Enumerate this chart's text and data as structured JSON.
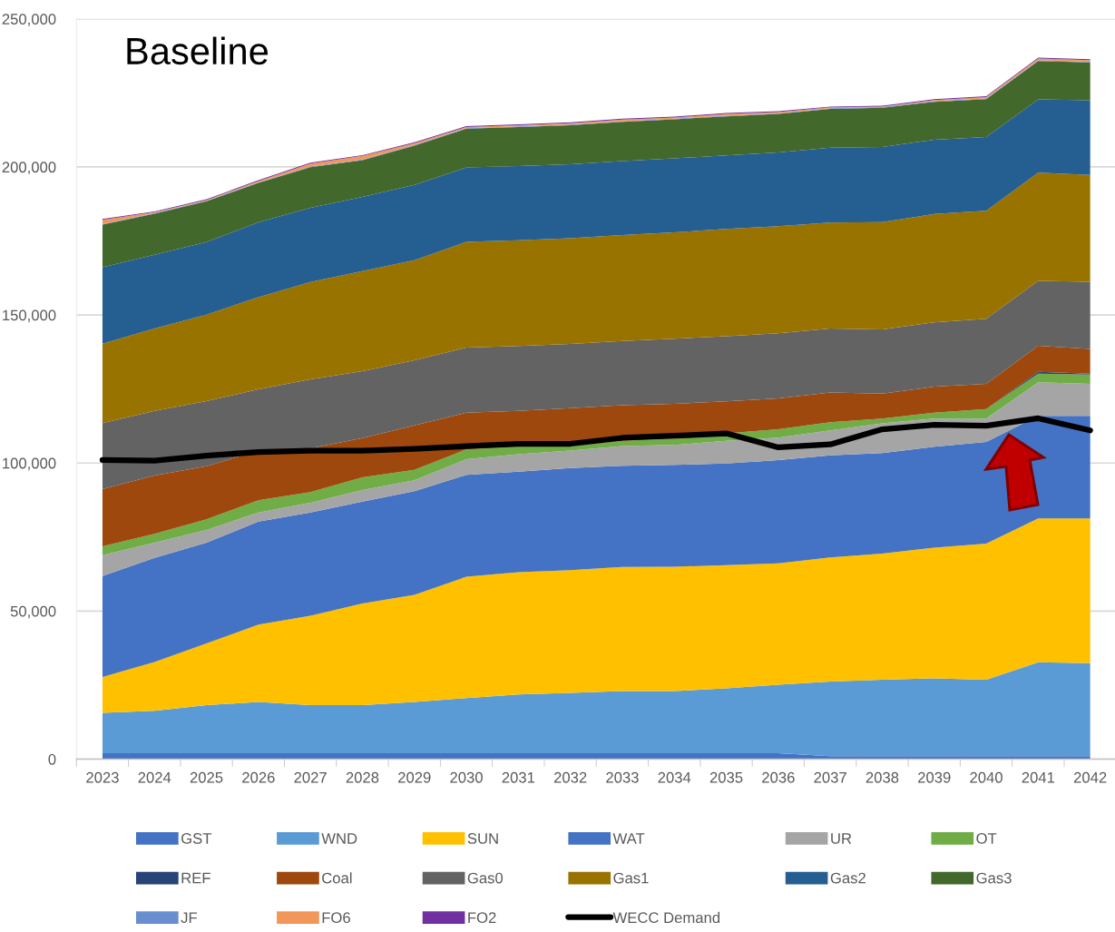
{
  "chart_data": {
    "type": "area",
    "title": "Baseline",
    "stacked": true,
    "categories": [
      "2023",
      "2024",
      "2025",
      "2026",
      "2027",
      "2028",
      "2029",
      "2030",
      "2031",
      "2032",
      "2033",
      "2034",
      "2035",
      "2036",
      "2037",
      "2038",
      "2039",
      "2040",
      "2041",
      "2042"
    ],
    "series": [
      {
        "name": "GST",
        "color": "#4472c4",
        "values": [
          2000,
          2000,
          2000,
          2000,
          2000,
          2000,
          2000,
          2000,
          2000,
          2000,
          2000,
          2000,
          2000,
          2000,
          1000,
          1000,
          1000,
          1000,
          1000,
          1000
        ]
      },
      {
        "name": "WND",
        "color": "#5b9bd5",
        "values": [
          13600,
          14300,
          16200,
          17300,
          16200,
          16200,
          17300,
          18600,
          19800,
          20400,
          21000,
          21000,
          21900,
          23100,
          25200,
          25800,
          26300,
          25800,
          31700,
          31400
        ]
      },
      {
        "name": "SUN",
        "color": "#ffc000",
        "values": [
          12100,
          16500,
          20900,
          26100,
          30200,
          34400,
          36200,
          41000,
          41300,
          41400,
          41900,
          42000,
          41600,
          41000,
          41900,
          42600,
          44100,
          46000,
          48600,
          48900
        ]
      },
      {
        "name": "WAT",
        "color": "#4472c4",
        "values": [
          34100,
          35200,
          34000,
          34800,
          34900,
          34400,
          35000,
          34400,
          34000,
          34500,
          34200,
          34400,
          34300,
          34900,
          34500,
          34000,
          34100,
          34300,
          34600,
          34600
        ]
      },
      {
        "name": "UR",
        "color": "#a5a5a5",
        "values": [
          7100,
          5100,
          4300,
          3100,
          3300,
          3900,
          3700,
          5300,
          5900,
          5900,
          6600,
          6700,
          7700,
          7600,
          8400,
          10000,
          9500,
          7900,
          11400,
          10800
        ]
      },
      {
        "name": "OT",
        "color": "#70ad47",
        "values": [
          3000,
          3000,
          3600,
          4100,
          3600,
          4300,
          3500,
          3300,
          2600,
          1800,
          1800,
          2200,
          2500,
          2800,
          2800,
          1600,
          2000,
          3200,
          2900,
          3200
        ]
      },
      {
        "name": "REF",
        "color": "#264478",
        "values": [
          0,
          0,
          0,
          0,
          0,
          0,
          0,
          0,
          0,
          0,
          0,
          0,
          0,
          0,
          0,
          0,
          0,
          0,
          600,
          300
        ]
      },
      {
        "name": "Coal",
        "color": "#9e480e",
        "values": [
          19300,
          19700,
          17900,
          16800,
          14800,
          13200,
          15000,
          12400,
          12000,
          12500,
          12000,
          11700,
          10800,
          10400,
          10000,
          8400,
          8800,
          8500,
          8800,
          8300
        ]
      },
      {
        "name": "Gas0",
        "color": "#636363",
        "values": [
          22300,
          21800,
          22000,
          20700,
          23300,
          22600,
          22000,
          22000,
          21900,
          21700,
          21700,
          22000,
          22000,
          22000,
          21600,
          21700,
          21700,
          22000,
          21900,
          22700
        ]
      },
      {
        "name": "Gas1",
        "color": "#997300",
        "values": [
          26800,
          27800,
          29200,
          31100,
          32800,
          33800,
          33800,
          35700,
          35700,
          35700,
          35800,
          35900,
          36300,
          36200,
          35800,
          36300,
          36600,
          36500,
          36600,
          36100
        ]
      },
      {
        "name": "Gas2",
        "color": "#255e91",
        "values": [
          25800,
          24900,
          24500,
          25300,
          25100,
          25100,
          25400,
          25100,
          25100,
          25000,
          25000,
          25000,
          24800,
          24900,
          25300,
          25300,
          25100,
          24900,
          24700,
          25200
        ]
      },
      {
        "name": "Gas3",
        "color": "#43682b",
        "values": [
          14400,
          13900,
          13800,
          13300,
          13700,
          12400,
          13300,
          13100,
          13200,
          13200,
          13200,
          13200,
          13200,
          13000,
          13100,
          13300,
          12800,
          12800,
          13000,
          12800
        ]
      },
      {
        "name": "JF",
        "color": "#698ed0",
        "values": [
          200,
          200,
          200,
          200,
          200,
          200,
          200,
          200,
          200,
          200,
          200,
          200,
          200,
          200,
          200,
          200,
          200,
          200,
          200,
          200
        ]
      },
      {
        "name": "FO6",
        "color": "#f1975a",
        "values": [
          1400,
          300,
          200,
          400,
          1000,
          1200,
          600,
          400,
          400,
          500,
          600,
          400,
          600,
          400,
          300,
          200,
          400,
          500,
          600,
          600
        ]
      },
      {
        "name": "FO2",
        "color": "#7030a0",
        "values": [
          300,
          300,
          300,
          300,
          300,
          300,
          300,
          300,
          300,
          300,
          300,
          300,
          300,
          300,
          300,
          300,
          300,
          300,
          300,
          300
        ]
      },
      {
        "name": "WECC Demand",
        "type": "line",
        "color": "#000000",
        "values": [
          101000,
          100800,
          102500,
          103700,
          104200,
          104200,
          104800,
          105700,
          106500,
          106500,
          108500,
          109200,
          110000,
          105300,
          106300,
          111400,
          112900,
          112600,
          115100,
          111000
        ]
      }
    ],
    "ylim": [
      0,
      250000
    ],
    "yticks": [
      0,
      {
        "value": 50000,
        "label": "50,000"
      },
      {
        "value": 100000,
        "label": "100,000"
      },
      {
        "value": 150000,
        "label": "150,000"
      },
      {
        "value": 200000,
        "label": "200,000"
      },
      {
        "value": 250000,
        "label": "250,000"
      }
    ],
    "grid": "y",
    "legend": "bottom"
  }
}
